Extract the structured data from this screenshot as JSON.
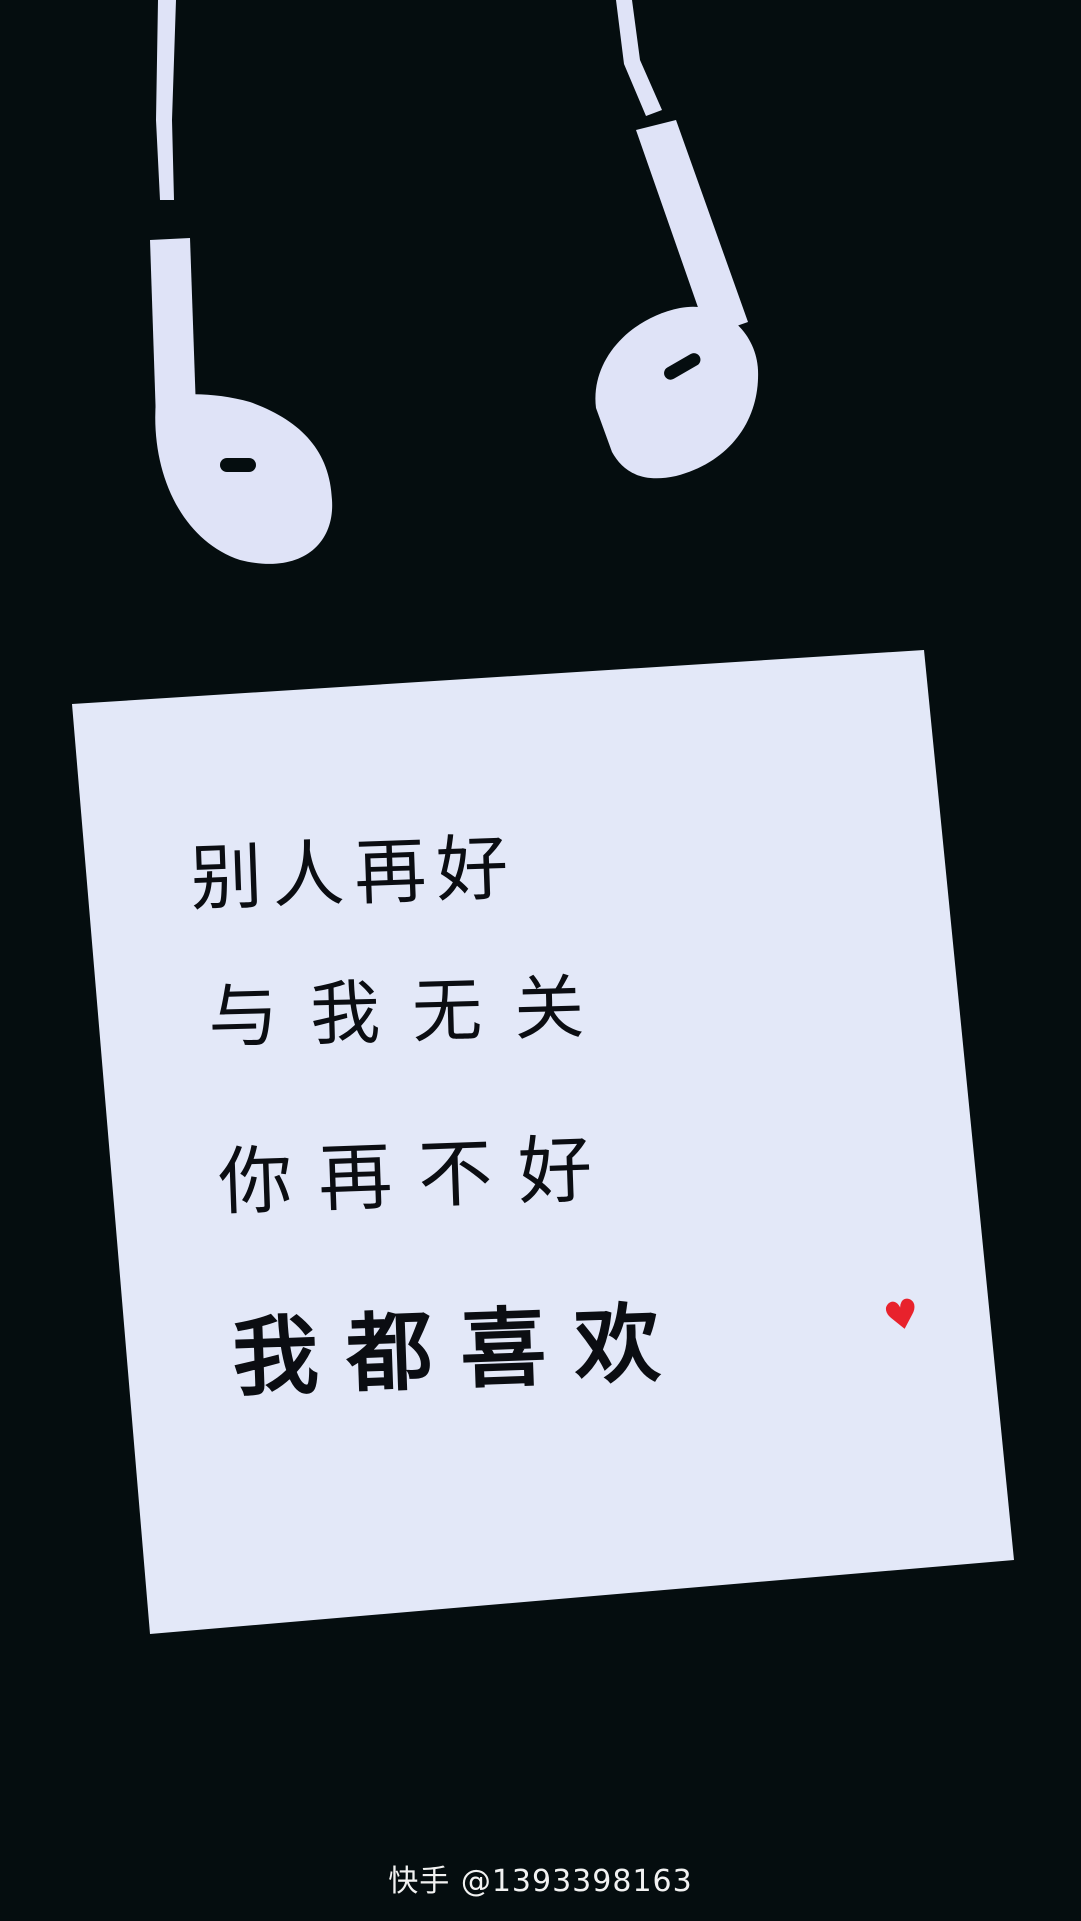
{
  "colors": {
    "background": "#050d0f",
    "note_paper": "#e3e8f8",
    "earphones": "#dfe3f7",
    "ink": "#0b0d12",
    "heart": "#e8222c",
    "watermark": "#f2f2f2"
  },
  "note": {
    "lines": [
      "别人再好",
      "与我无关",
      "你再不好",
      "我都喜欢"
    ],
    "heart_glyph": "♥"
  },
  "watermark": {
    "text": "快手 @1393398163"
  }
}
